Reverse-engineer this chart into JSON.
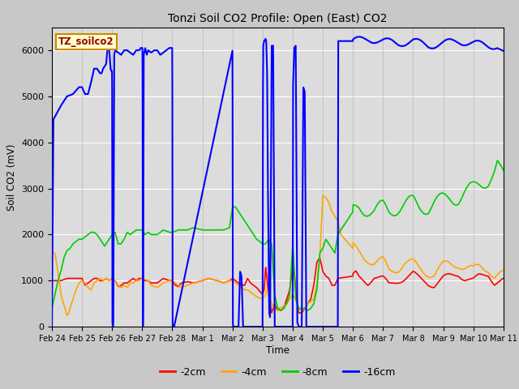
{
  "title": "Tonzi Soil CO2 Profile: Open (East) CO2",
  "xlabel": "Time",
  "ylabel": "Soil CO2 (mV)",
  "ylim": [
    0,
    6500
  ],
  "legend_label": "TZ_soilco2",
  "series_labels": [
    "-2cm",
    "-4cm",
    "-8cm",
    "-16cm"
  ],
  "series_colors": [
    "#ff0000",
    "#ffa500",
    "#00cc00",
    "#0000ff"
  ],
  "plot_bg_color": "#dcdcdc",
  "grid_color": "#ffffff",
  "tick_labels": [
    "Feb 24",
    "Feb 25",
    "Feb 26",
    "Feb 27",
    "Feb 28",
    "Mar 1",
    "Mar 2",
    "Mar 3",
    "Mar 4",
    "Mar 5",
    "Mar 6",
    "Mar 7",
    "Mar 8",
    "Mar 9",
    "Mar 10",
    "Mar 11"
  ]
}
